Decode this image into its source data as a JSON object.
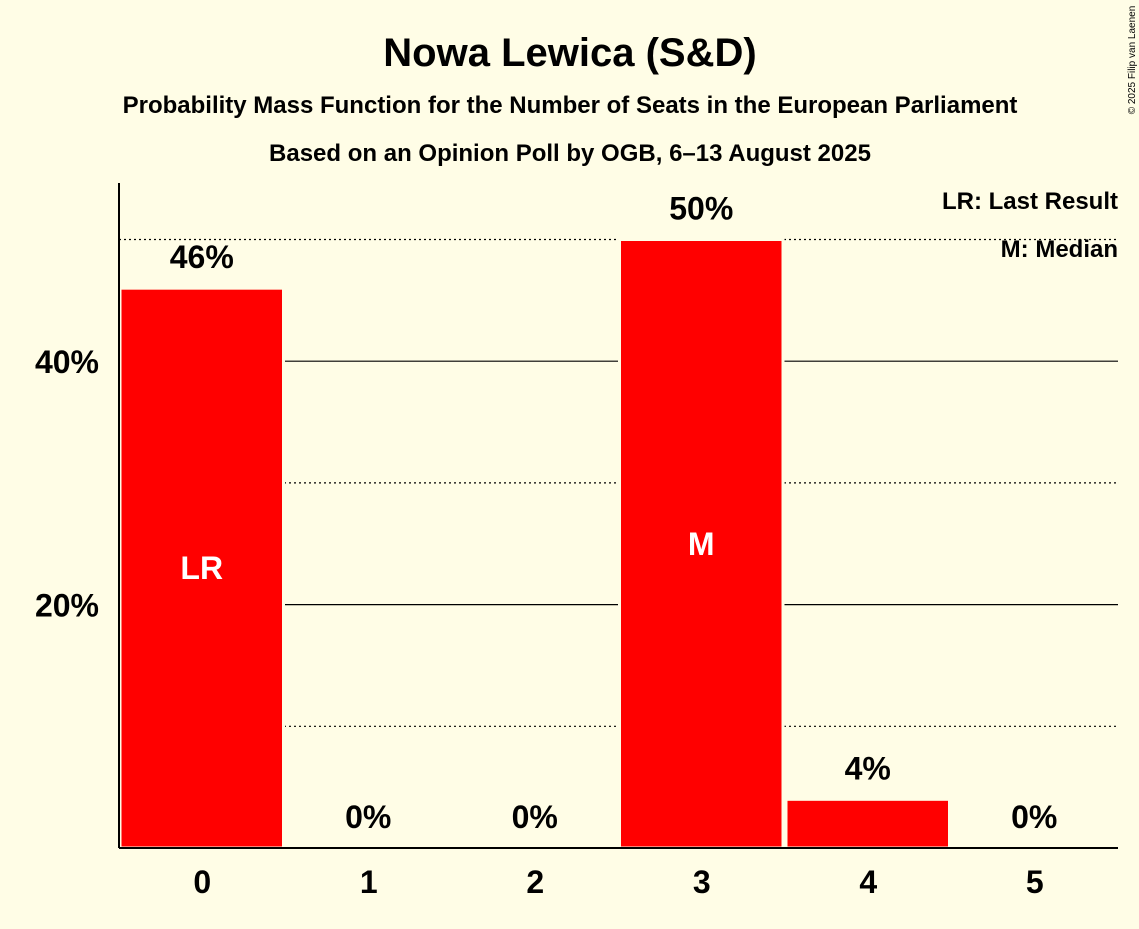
{
  "chart_data": {
    "type": "bar",
    "title": "Nowa Lewica (S&D)",
    "subtitle": "Probability Mass Function for the Number of Seats in the European Parliament",
    "subtitle2": "Based on an Opinion Poll by OGB, 6–13 August 2025",
    "copyright": "© 2025 Filip van Laenen",
    "categories": [
      "0",
      "1",
      "2",
      "3",
      "4",
      "5"
    ],
    "values": [
      46,
      0,
      0,
      50,
      4,
      0
    ],
    "value_labels": [
      "46%",
      "0%",
      "0%",
      "50%",
      "4%",
      "0%"
    ],
    "bar_markers": [
      "LR",
      "",
      "",
      "M",
      "",
      ""
    ],
    "ylim": [
      0,
      55
    ],
    "yticks": [
      20,
      40
    ],
    "ytick_labels": [
      "20%",
      "40%"
    ],
    "minor_gridlines": [
      10,
      30,
      50
    ],
    "legend": [
      "LR: Last Result",
      "M: Median"
    ],
    "legend_position": "top-right",
    "bar_color": "#FF0000",
    "background_color": "#FFFDE6",
    "xlabel": "",
    "ylabel": ""
  }
}
